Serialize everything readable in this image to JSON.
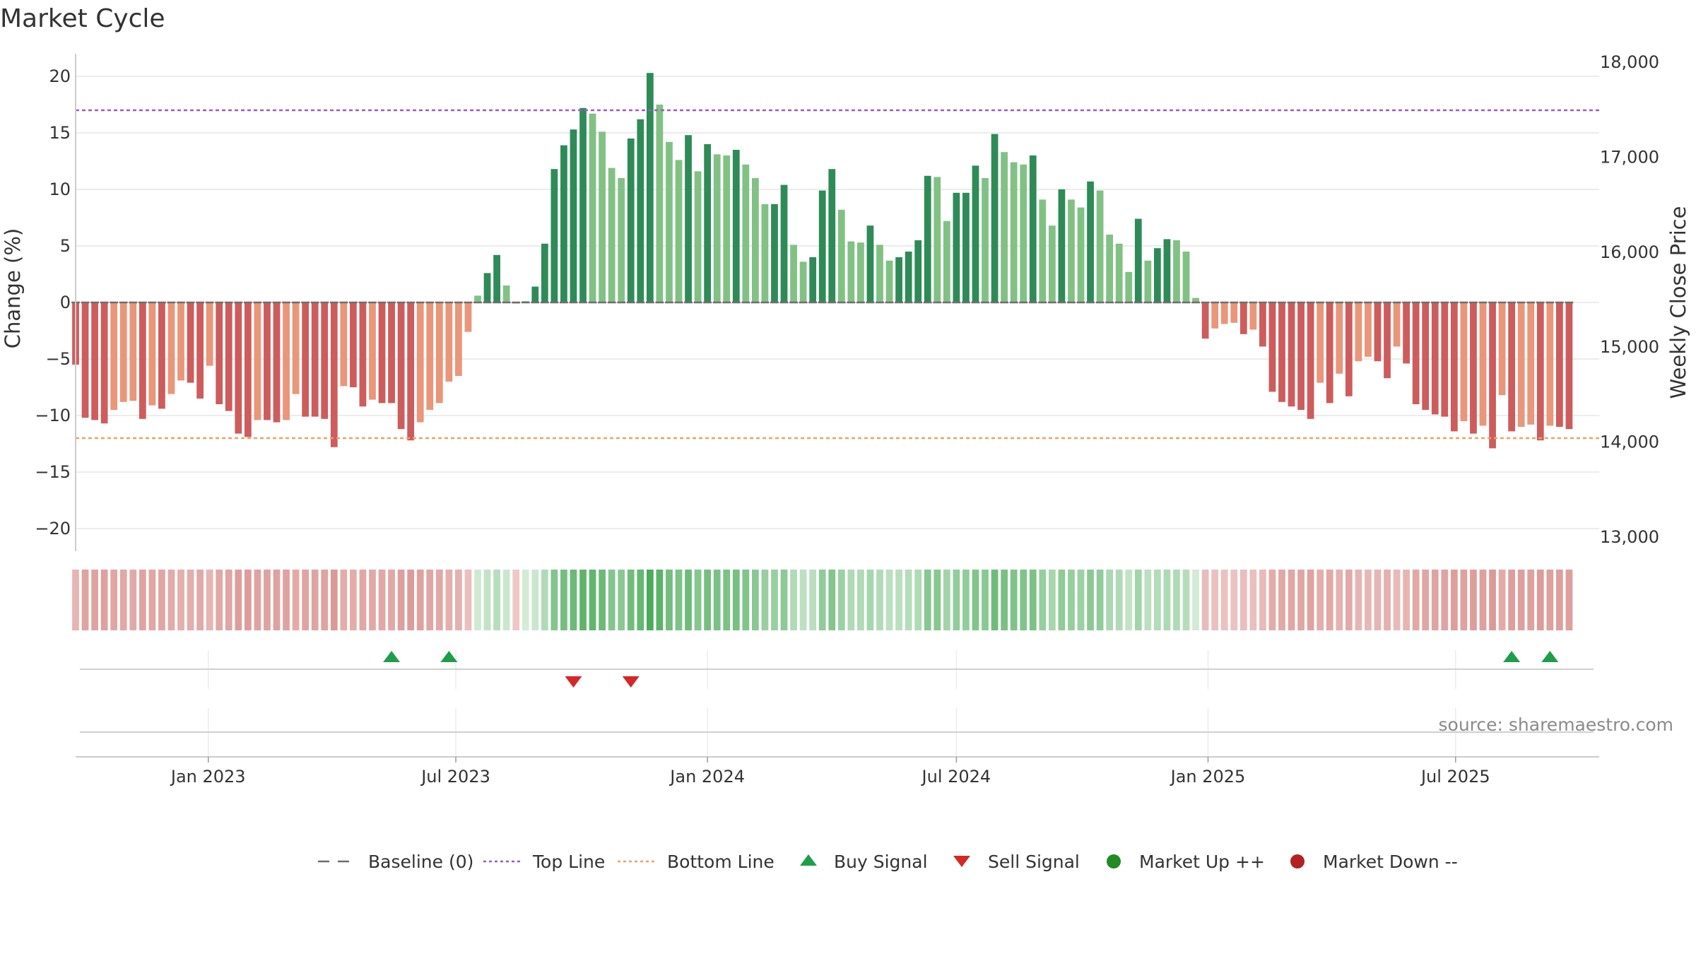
{
  "chart_data": {
    "type": "bar",
    "title": "Market Cycle",
    "ylabel_left": "Change (%)",
    "ylabel_right": "Weekly Close Price",
    "y_left_range": [
      -22,
      22
    ],
    "y_left_ticks": [
      20,
      15,
      10,
      5,
      0,
      -5,
      -10,
      -15,
      -20
    ],
    "y_left_tick_labels": [
      "20",
      "15",
      "10",
      "5",
      "0",
      "−5",
      "−10",
      "−15",
      "−20"
    ],
    "y_right_range": [
      12850,
      18090
    ],
    "y_right_ticks": [
      18000,
      17000,
      16000,
      15000,
      14000,
      13000
    ],
    "y_right_tick_labels": [
      "18,000",
      "17,000",
      "16,000",
      "15,000",
      "14,000",
      "13,000"
    ],
    "x_range": [
      "2022-09-26",
      "2025-10-14"
    ],
    "x_ticks": [
      {
        "date": "2023-01-01",
        "label": "Jan 2023"
      },
      {
        "date": "2023-07-01",
        "label": "Jul 2023"
      },
      {
        "date": "2024-01-01",
        "label": "Jan 2024"
      },
      {
        "date": "2024-07-01",
        "label": "Jul 2024"
      },
      {
        "date": "2025-01-01",
        "label": "Jan 2025"
      },
      {
        "date": "2025-07-01",
        "label": "Jul 2025"
      }
    ],
    "start_week": "2022-09-26",
    "week_interval_days": 7,
    "top_line": 17,
    "bottom_line": -12,
    "baseline": 0,
    "values": [
      -5.5,
      -10.2,
      -10.4,
      -10.7,
      -9.5,
      -8.8,
      -8.7,
      -10.3,
      -9.1,
      -9.4,
      -8.1,
      -6.9,
      -7.1,
      -8.5,
      -5.6,
      -9,
      -9.6,
      -11.6,
      -11.9,
      -10.4,
      -10.4,
      -10.6,
      -10.4,
      -8.1,
      -10.1,
      -10.1,
      -10.3,
      -12.8,
      -7.4,
      -7.5,
      -9.2,
      -8.6,
      -8.9,
      -8.9,
      -11.2,
      -12.2,
      -10.6,
      -9.5,
      -8.9,
      -7,
      -6.5,
      -2.6,
      0.6,
      2.6,
      4.2,
      1.5,
      -0.1,
      0.1,
      1.4,
      5.2,
      11.8,
      13.9,
      15.3,
      17.2,
      16.7,
      15.1,
      11.9,
      11,
      14.5,
      16.2,
      20.3,
      17.5,
      14.2,
      12.6,
      14.8,
      11.6,
      14,
      13.1,
      13,
      13.5,
      12.2,
      11,
      8.7,
      8.7,
      10.4,
      5.1,
      3.6,
      4,
      9.9,
      11.8,
      8.2,
      5.4,
      5.3,
      6.8,
      5.1,
      3.7,
      4,
      4.5,
      5.5,
      11.2,
      11.1,
      7.2,
      9.7,
      9.7,
      12.1,
      11,
      14.9,
      13.3,
      12.4,
      12.2,
      13,
      9.1,
      6.8,
      10,
      9.1,
      8.4,
      10.7,
      9.9,
      6,
      5.2,
      2.7,
      7.4,
      3.7,
      4.8,
      5.6,
      5.5,
      4.5,
      0.4,
      -3.2,
      -2.3,
      -1.9,
      -1.8,
      -2.8,
      -2.4,
      -3.9,
      -7.9,
      -8.8,
      -9.2,
      -9.5,
      -10.3,
      -7.1,
      -8.9,
      -6.3,
      -8.3,
      -5.2,
      -4.8,
      -5.2,
      -6.7,
      -3.9,
      -5.4,
      -9,
      -9.5,
      -9.9,
      -10.1,
      -11.4,
      -10.5,
      -11.6,
      -10.9,
      -12.9,
      -8.2,
      -11.4,
      -11,
      -10.8,
      -12.2,
      -10.9,
      -11,
      -11.2
    ],
    "series": [
      {
        "name": "Baseline (0)",
        "style": "dashed",
        "color": "#6e6e6e"
      },
      {
        "name": "Top Line",
        "style": "dotted",
        "color": "#9b59c9",
        "value": 17
      },
      {
        "name": "Bottom Line",
        "style": "dotted",
        "color": "#f0a060",
        "value": -12
      },
      {
        "name": "Buy Signal",
        "marker": "triangle-up",
        "color": "#1f9e4a",
        "dates": [
          "2023-05-15",
          "2023-06-26",
          "2025-08-11",
          "2025-09-08"
        ]
      },
      {
        "name": "Sell Signal",
        "marker": "triangle-down",
        "color": "#d62728",
        "dates": [
          "2023-09-25",
          "2023-11-06"
        ]
      },
      {
        "name": "Market Up ++",
        "marker": "circle",
        "color": "#228b22",
        "dates": []
      },
      {
        "name": "Market Down --",
        "marker": "circle",
        "color": "#b22222",
        "dates": []
      }
    ],
    "legend_position": "bottom-center",
    "grid": true
  },
  "source_note": "source: sharemaestro.com",
  "colors": {
    "pos_strong": "#2e8b57",
    "pos_light": "#82c184",
    "neg_strong": "#cd5c5c",
    "neg_light": "#e9967a"
  }
}
